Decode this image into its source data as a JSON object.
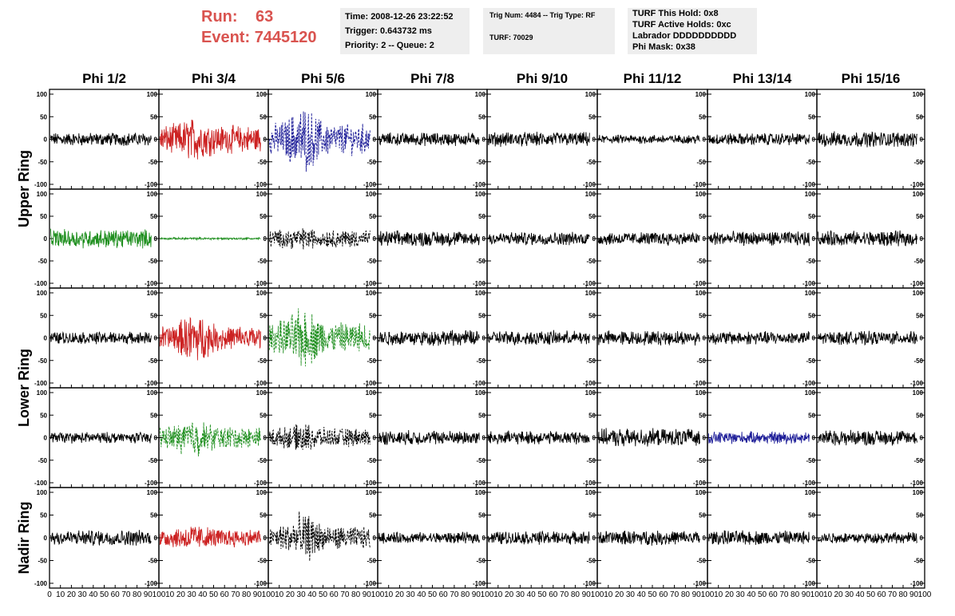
{
  "header": {
    "run_label": "Run:",
    "run_value": "63",
    "event_label": "Event:",
    "event_value": "7445120",
    "info1": [
      "Time: 2008-12-26 23:22:52",
      "Trigger: 0.643732 ms",
      "Priority: 2 -- Queue: 2"
    ],
    "info2": [
      "Trig Num: 4484 -- Trig Type: RF",
      "TURF: 70029"
    ],
    "info3": [
      "TURF This Hold: 0x8",
      "TURF Active Holds: 0xc",
      "Labrador DDDDDDDDDD",
      "Phi Mask: 0x38"
    ]
  },
  "chart_data": {
    "type": "line",
    "title": "",
    "columns": [
      "Phi 1/2",
      "Phi 3/4",
      "Phi 5/6",
      "Phi 7/8",
      "Phi 9/10",
      "Phi 11/12",
      "Phi 13/14",
      "Phi 15/16"
    ],
    "ring_labels": [
      "Upper Ring",
      "Lower Ring",
      "Nadir Ring"
    ],
    "ring_rows": [
      [
        0,
        1
      ],
      [
        2,
        3
      ],
      [
        4
      ]
    ],
    "xlim": [
      0,
      100
    ],
    "ylim": [
      -100,
      100
    ],
    "x_ticks": [
      0,
      10,
      20,
      30,
      40,
      50,
      60,
      70,
      80,
      90,
      100
    ],
    "y_ticks": [
      -100,
      -50,
      0,
      50,
      100
    ],
    "y_tick_labels": [
      "-100",
      "-50",
      "0",
      "50",
      "100"
    ],
    "x_tick_labels": [
      "0",
      "10",
      "20",
      "30",
      "40",
      "50",
      "60",
      "70",
      "80",
      "90",
      "100"
    ],
    "colors": {
      "black": "#000000",
      "red": "#cc2222",
      "blue": "#1f1f99",
      "green": "#1f8f1f"
    },
    "panels": [
      [
        {
          "color": "black",
          "amp": 12,
          "dash": false
        },
        {
          "color": "red",
          "amp": 25,
          "burst": 40,
          "dash": false
        },
        {
          "color": "blue",
          "amp": 28,
          "burst": 60,
          "dash": true
        },
        {
          "color": "black",
          "amp": 12,
          "dash": false
        },
        {
          "color": "black",
          "amp": 13,
          "dash": false
        },
        {
          "color": "black",
          "amp": 8,
          "dash": false
        },
        {
          "color": "black",
          "amp": 11,
          "dash": false
        },
        {
          "color": "black",
          "amp": 14,
          "dash": false
        }
      ],
      [
        {
          "color": "green",
          "amp": 17,
          "dash": false
        },
        {
          "color": "green",
          "amp": 2,
          "dash": false
        },
        {
          "color": "black",
          "amp": 16,
          "burst": 20,
          "dash": true
        },
        {
          "color": "black",
          "amp": 14,
          "dash": false
        },
        {
          "color": "black",
          "amp": 12,
          "dash": false
        },
        {
          "color": "black",
          "amp": 12,
          "dash": false
        },
        {
          "color": "black",
          "amp": 13,
          "dash": false
        },
        {
          "color": "black",
          "amp": 14,
          "dash": false
        }
      ],
      [
        {
          "color": "black",
          "amp": 11,
          "dash": false
        },
        {
          "color": "red",
          "amp": 22,
          "burst": 45,
          "dash": false
        },
        {
          "color": "green",
          "amp": 28,
          "burst": 55,
          "dash": true
        },
        {
          "color": "black",
          "amp": 14,
          "dash": false
        },
        {
          "color": "black",
          "amp": 13,
          "dash": false
        },
        {
          "color": "black",
          "amp": 13,
          "dash": false
        },
        {
          "color": "black",
          "amp": 12,
          "dash": false
        },
        {
          "color": "black",
          "amp": 12,
          "dash": false
        }
      ],
      [
        {
          "color": "black",
          "amp": 10,
          "dash": false
        },
        {
          "color": "green",
          "amp": 20,
          "burst": 35,
          "dash": true
        },
        {
          "color": "black",
          "amp": 17,
          "burst": 25,
          "dash": true
        },
        {
          "color": "black",
          "amp": 13,
          "dash": false
        },
        {
          "color": "black",
          "amp": 12,
          "dash": false
        },
        {
          "color": "black",
          "amp": 16,
          "dash": false
        },
        {
          "color": "blue",
          "amp": 11,
          "dash": false
        },
        {
          "color": "black",
          "amp": 14,
          "dash": false
        }
      ],
      [
        {
          "color": "black",
          "amp": 14,
          "dash": false
        },
        {
          "color": "red",
          "amp": 16,
          "burst": 25,
          "dash": false
        },
        {
          "color": "black",
          "amp": 20,
          "burst": 45,
          "dash": true
        },
        {
          "color": "black",
          "amp": 10,
          "dash": false
        },
        {
          "color": "black",
          "amp": 12,
          "dash": false
        },
        {
          "color": "black",
          "amp": 13,
          "dash": false
        },
        {
          "color": "black",
          "amp": 13,
          "dash": false
        },
        {
          "color": "black",
          "amp": 10,
          "dash": false
        }
      ]
    ]
  }
}
